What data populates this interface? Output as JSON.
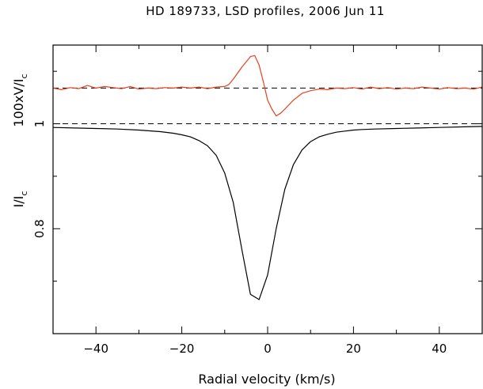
{
  "chart_data": {
    "type": "line",
    "title": "HD 189733, LSD profiles, 2006 Jun 11",
    "xlabel": "Radial velocity (km/s)",
    "ylabel_intensity": {
      "main": "I/I",
      "sub": "c"
    },
    "ylabel_stokes": {
      "main": "100xV/I",
      "sub": "c"
    },
    "xlim": [
      -50,
      50
    ],
    "ylim": [
      0.6,
      1.15
    ],
    "x_ticks": [
      "−40",
      "−20",
      "0",
      "20",
      "40"
    ],
    "x_tick_values": [
      -40,
      -20,
      0,
      20,
      40
    ],
    "y_ticks": [
      "0.8",
      "1"
    ],
    "y_tick_values": [
      0.8,
      1.0
    ],
    "x_minor_step": 10,
    "y_minor_step": 0.1,
    "reference_lines": [
      {
        "name": "",
        "y": 1.0,
        "style": "dashed"
      },
      {
        "name": "",
        "y": 1.068,
        "style": "dashed"
      }
    ],
    "grid": false,
    "series": [
      {
        "color": "#000000",
        "x": [
          -50,
          -45,
          -40,
          -35,
          -30,
          -25,
          -22,
          -20,
          -18,
          -16,
          -14,
          -12,
          -10,
          -8,
          -6,
          -4,
          -2,
          0,
          2,
          4,
          6,
          8,
          10,
          12,
          14,
          16,
          18,
          20,
          22,
          25,
          30,
          35,
          40,
          45,
          50
        ],
        "y": [
          0.993,
          0.992,
          0.991,
          0.99,
          0.988,
          0.985,
          0.982,
          0.979,
          0.975,
          0.968,
          0.958,
          0.94,
          0.906,
          0.85,
          0.76,
          0.675,
          0.665,
          0.712,
          0.8,
          0.875,
          0.922,
          0.95,
          0.966,
          0.975,
          0.98,
          0.984,
          0.986,
          0.988,
          0.989,
          0.99,
          0.991,
          0.992,
          0.993,
          0.994,
          0.995
        ]
      },
      {
        "color": "#e8401c",
        "x": [
          -50,
          -48,
          -46,
          -44,
          -42,
          -40,
          -38,
          -36,
          -34,
          -32,
          -30,
          -28,
          -26,
          -24,
          -22,
          -20,
          -18,
          -16,
          -14,
          -12,
          -10,
          -9,
          -8,
          -6,
          -4,
          -3,
          -2,
          -1,
          0,
          1,
          2,
          3,
          4,
          6,
          8,
          10,
          12,
          14,
          16,
          18,
          20,
          22,
          24,
          26,
          28,
          30,
          32,
          34,
          36,
          38,
          40,
          42,
          44,
          46,
          48,
          50
        ],
        "y": [
          1.068,
          1.065,
          1.069,
          1.067,
          1.073,
          1.068,
          1.071,
          1.069,
          1.067,
          1.071,
          1.066,
          1.068,
          1.067,
          1.069,
          1.068,
          1.07,
          1.068,
          1.07,
          1.067,
          1.07,
          1.071,
          1.075,
          1.085,
          1.108,
          1.128,
          1.13,
          1.112,
          1.08,
          1.045,
          1.028,
          1.015,
          1.02,
          1.028,
          1.045,
          1.058,
          1.063,
          1.066,
          1.065,
          1.068,
          1.067,
          1.069,
          1.066,
          1.07,
          1.067,
          1.069,
          1.066,
          1.068,
          1.067,
          1.07,
          1.068,
          1.066,
          1.069,
          1.067,
          1.068,
          1.066,
          1.07
        ]
      }
    ]
  }
}
